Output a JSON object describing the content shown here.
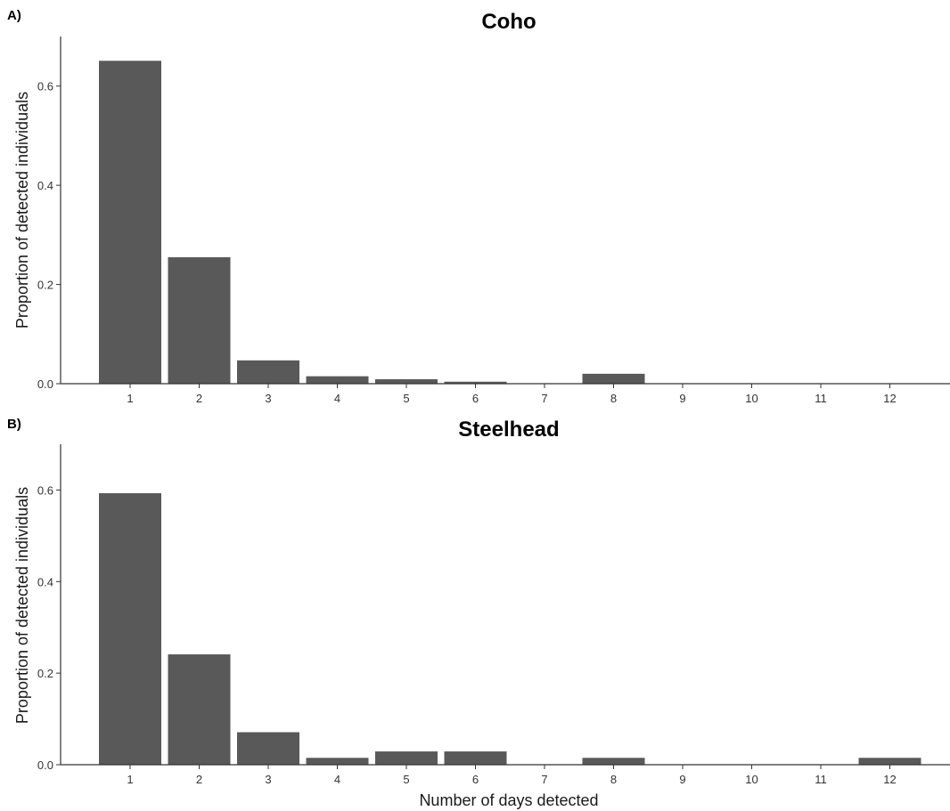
{
  "chart_data": [
    {
      "type": "bar",
      "panel_label": "A)",
      "title": "Coho",
      "xlabel": "",
      "ylabel": "Proportion of detected individuals",
      "categories": [
        "1",
        "2",
        "3",
        "4",
        "5",
        "6",
        "7",
        "8",
        "9",
        "10",
        "11",
        "12"
      ],
      "values": [
        0.651,
        0.255,
        0.047,
        0.015,
        0.009,
        0.004,
        0.0,
        0.02,
        0.0,
        0.0,
        0.0,
        0.0
      ],
      "yticks": [
        "0.0",
        "0.2",
        "0.4",
        "0.6"
      ],
      "ylim": [
        0,
        0.7
      ],
      "grid": false,
      "bar_color": "#595959"
    },
    {
      "type": "bar",
      "panel_label": "B)",
      "title": "Steelhead",
      "xlabel": "Number of days detected",
      "ylabel": "Proportion of detected individuals",
      "categories": [
        "1",
        "2",
        "3",
        "4",
        "5",
        "6",
        "7",
        "8",
        "9",
        "10",
        "11",
        "12"
      ],
      "values": [
        0.593,
        0.241,
        0.071,
        0.015,
        0.029,
        0.029,
        0.0,
        0.015,
        0.0,
        0.0,
        0.0,
        0.015
      ],
      "yticks": [
        "0.0",
        "0.2",
        "0.4",
        "0.6"
      ],
      "ylim": [
        0,
        0.7
      ],
      "grid": false,
      "bar_color": "#595959"
    }
  ]
}
